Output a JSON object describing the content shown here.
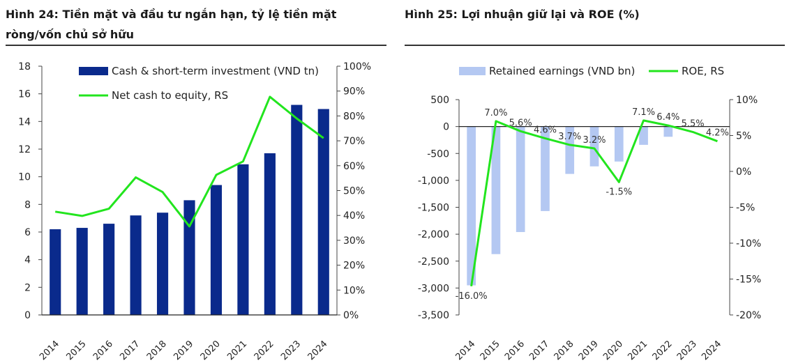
{
  "charts": [
    {
      "title": "Hình 24: Tiền mặt và đầu tư ngắn hạn, tỷ lệ tiền mặt ròng/vốn chủ sở hữu"
    },
    {
      "title": "Hình 25: Lợi nhuận giữ lại và ROE (%)"
    }
  ],
  "chart_data": [
    {
      "type": "bar+line",
      "categories": [
        "2014",
        "2015",
        "2016",
        "2017",
        "2018",
        "2019",
        "2020",
        "2021",
        "2022",
        "2023",
        "2024"
      ],
      "series": [
        {
          "name": "Cash & short-term investment (VND tn)",
          "type": "bar",
          "axis": "left",
          "color": "#0a2a8c",
          "values": [
            6.2,
            6.3,
            6.6,
            7.2,
            7.4,
            8.3,
            9.4,
            10.9,
            11.7,
            15.2,
            14.9
          ]
        },
        {
          "name": "Net cash to equity, RS",
          "type": "line",
          "axis": "right",
          "color": "#22e51e",
          "values": [
            41.5,
            39.8,
            42.7,
            55.3,
            49.4,
            35.6,
            56.3,
            61.7,
            87.7,
            79.0,
            71.1
          ]
        }
      ],
      "ylim_left": [
        0,
        18
      ],
      "yticks_left": [
        "0",
        "2",
        "4",
        "6",
        "8",
        "10",
        "12",
        "14",
        "16",
        "18"
      ],
      "ylim_right": [
        0,
        100
      ],
      "yticks_right": [
        "0%",
        "10%",
        "20%",
        "30%",
        "40%",
        "50%",
        "60%",
        "70%",
        "80%",
        "90%",
        "100%"
      ],
      "legend": "top-left",
      "grid": false
    },
    {
      "type": "bar+line",
      "categories": [
        "2014",
        "2015",
        "2016",
        "2017",
        "2018",
        "2019",
        "2020",
        "2021",
        "2022",
        "2023",
        "2024"
      ],
      "series": [
        {
          "name": "Retained earnings (VND bn)",
          "type": "bar",
          "axis": "left",
          "color": "#b4c8f2",
          "values": [
            -2950,
            -2370,
            -1960,
            -1570,
            -880,
            -740,
            -650,
            -340,
            -190,
            0,
            0
          ]
        },
        {
          "name": "ROE, RS",
          "type": "line",
          "axis": "right",
          "color": "#22e51e",
          "values": [
            -16.0,
            7.0,
            5.6,
            4.6,
            3.7,
            3.2,
            -1.5,
            7.1,
            6.4,
            5.5,
            4.2
          ],
          "labels": [
            "-16.0%",
            "7.0%",
            "5.6%",
            "4.6%",
            "3.7%",
            "3.2%",
            "-1.5%",
            "7.1%",
            "6.4%",
            "5.5%",
            "4.2%"
          ]
        }
      ],
      "ylim_left": [
        -3500,
        500
      ],
      "yticks_left": [
        "-3,500",
        "-3,000",
        "-2,500",
        "-2,000",
        "-1,500",
        "-1,000",
        "-500",
        "0",
        "500"
      ],
      "ylim_right": [
        -20,
        10
      ],
      "yticks_right": [
        "-20%",
        "-15%",
        "-10%",
        "-5%",
        "0%",
        "5%",
        "10%"
      ],
      "legend": "top",
      "grid": false
    }
  ]
}
